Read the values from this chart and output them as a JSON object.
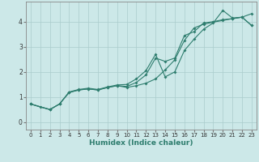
{
  "xlabel": "Humidex (Indice chaleur)",
  "background_color": "#cce8e8",
  "plot_bg_color": "#cce8e8",
  "grid_color": "#aacccc",
  "line_color": "#2e7d6e",
  "xlim": [
    -0.5,
    23.5
  ],
  "ylim": [
    -0.3,
    4.8
  ],
  "yticks": [
    0,
    1,
    2,
    3,
    4
  ],
  "xticks": [
    0,
    1,
    2,
    3,
    4,
    5,
    6,
    7,
    8,
    9,
    10,
    11,
    12,
    13,
    14,
    15,
    16,
    17,
    18,
    19,
    20,
    21,
    22,
    23
  ],
  "line1_x": [
    0,
    1,
    2,
    3,
    4,
    5,
    6,
    7,
    8,
    9,
    10,
    11,
    12,
    13,
    14,
    15,
    16,
    17,
    18,
    19,
    20,
    21,
    22,
    23
  ],
  "line1_y": [
    0.72,
    0.6,
    0.5,
    0.72,
    1.18,
    1.28,
    1.32,
    1.28,
    1.38,
    1.45,
    1.38,
    1.45,
    1.55,
    1.72,
    2.08,
    2.48,
    3.25,
    3.75,
    3.9,
    3.98,
    4.05,
    4.12,
    4.18,
    4.32
  ],
  "line2_x": [
    0,
    2,
    3,
    4,
    5,
    6,
    7,
    8,
    9,
    10,
    11,
    12,
    13,
    14,
    15,
    16,
    17,
    18,
    19,
    20,
    21,
    22,
    23
  ],
  "line2_y": [
    0.72,
    0.5,
    0.72,
    1.2,
    1.3,
    1.35,
    1.3,
    1.4,
    1.48,
    1.5,
    1.72,
    2.05,
    2.7,
    1.8,
    2.0,
    2.85,
    3.3,
    3.7,
    3.95,
    4.45,
    4.15,
    4.18,
    3.85
  ],
  "line3_x": [
    0,
    2,
    3,
    4,
    5,
    6,
    7,
    8,
    9,
    10,
    11,
    12,
    13,
    14,
    15,
    16,
    17,
    18,
    19,
    20,
    21,
    22,
    23
  ],
  "line3_y": [
    0.72,
    0.5,
    0.72,
    1.18,
    1.28,
    1.32,
    1.28,
    1.38,
    1.45,
    1.42,
    1.58,
    1.88,
    2.55,
    2.42,
    2.55,
    3.45,
    3.6,
    3.95,
    4.0,
    4.08,
    4.12,
    4.18,
    3.85
  ]
}
